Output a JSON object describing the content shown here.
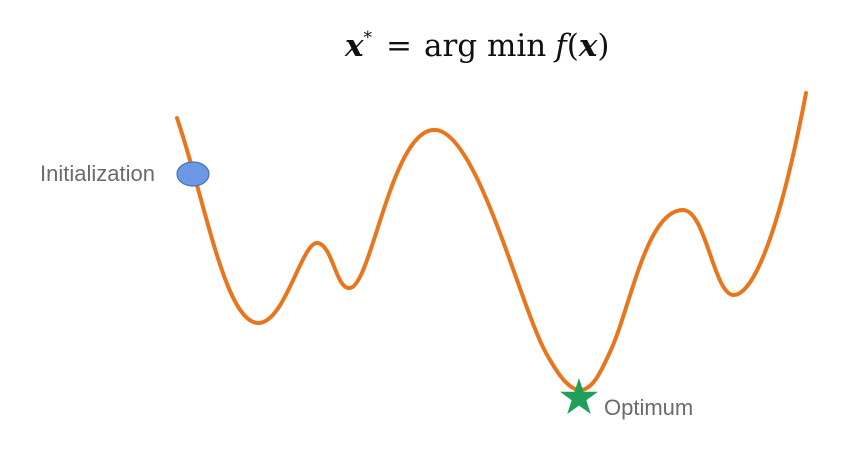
{
  "formula": {
    "lhs_symbol": "x",
    "lhs_superscript": "*",
    "equals": "=",
    "operator": "arg min",
    "function_name": "f",
    "open_paren": "(",
    "argument": "x",
    "close_paren": ")"
  },
  "labels": {
    "initialization": "Initialization",
    "optimum": "Optimum"
  },
  "colors": {
    "curve": "#E8761E",
    "initialization_marker": "#6A98E4",
    "initialization_marker_stroke": "#4A72B8",
    "optimum_marker": "#1FA05A",
    "text": "#6b6b6b",
    "formula_text": "#111111"
  },
  "icons": {
    "initialization_marker": "circle",
    "optimum_marker": "star"
  }
}
